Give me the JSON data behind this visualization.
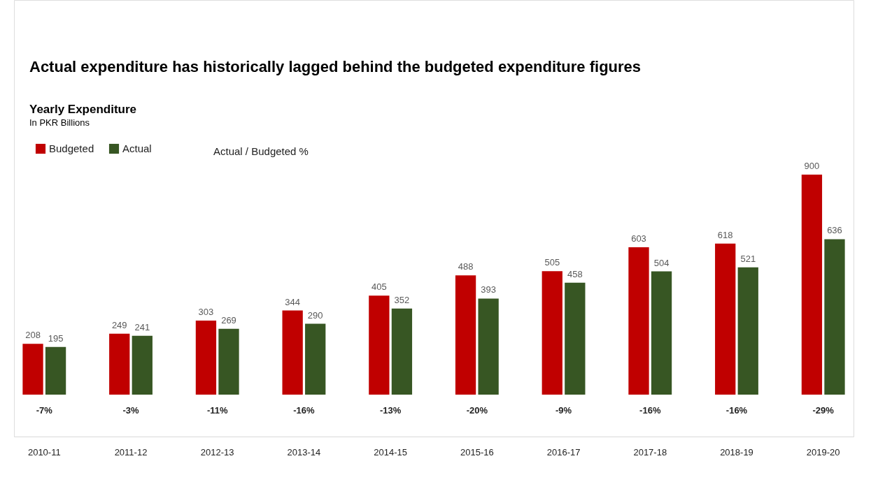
{
  "chart_data": {
    "type": "bar",
    "title": "Actual expenditure has historically lagged behind the budgeted expenditure figures",
    "subtitle": "Yearly Expenditure",
    "categories": [
      "2010-11",
      "2011-12",
      "2012-13",
      "2013-14",
      "2014-15",
      "2015-16",
      "2016-17",
      "2017-18",
      "2018-19",
      "2019-20"
    ],
    "series": [
      {
        "name": "Budgeted",
        "color": "#c00000",
        "values": [
          208,
          249,
          303,
          344,
          405,
          488,
          505,
          603,
          618,
          900
        ]
      },
      {
        "name": "Actual",
        "color": "#375623",
        "values": [
          195,
          241,
          269,
          290,
          352,
          393,
          458,
          504,
          521,
          636
        ]
      }
    ],
    "data_labels": true,
    "legend": "top left",
    "grid": false,
    "tick_labels": "x",
    "annotations": [
      "In PKR Billions",
      "Actual / Budgeted %",
      "-7%",
      "-3%",
      "-11%",
      "-16%",
      "-13%",
      "-20%",
      "-9%",
      "-16%",
      "-16%",
      "-29%"
    ]
  }
}
